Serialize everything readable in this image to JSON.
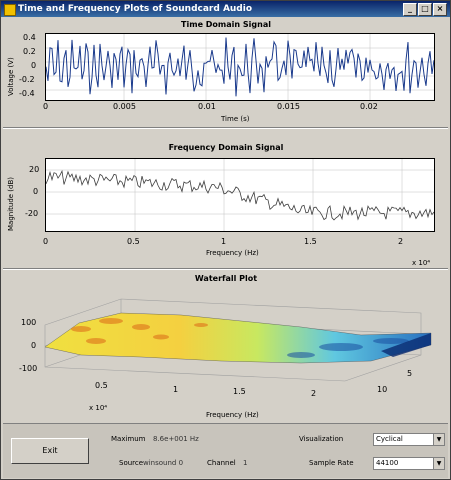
{
  "window": {
    "title": "Time and Frequency Plots of Soundcard Audio",
    "buttons": [
      "_",
      "□",
      "×"
    ]
  },
  "time_panel": {
    "title": "Time Domain Signal",
    "ylabel": "Voltage (V)",
    "xlabel": "Time (s)",
    "yticks": [
      "0.4",
      "0.2",
      "0",
      "-0.2",
      "-0.4"
    ],
    "xticks": [
      "0",
      "0.005",
      "0.01",
      "0.015",
      "0.02"
    ]
  },
  "freq_panel": {
    "title": "Frequency Domain Signal",
    "ylabel": "Magnitude (dB)",
    "xlabel": "Frequency (Hz)",
    "yticks": [
      "20",
      "0",
      "-20"
    ],
    "xticks": [
      "0",
      "0.5",
      "1",
      "1.5",
      "2"
    ],
    "exponent": "x 10⁴"
  },
  "waterfall_panel": {
    "title": "Waterfall Plot",
    "zticks": [
      "100",
      "0",
      "-100"
    ],
    "xticks": [
      "0.5",
      "1",
      "1.5",
      "2"
    ],
    "yticks": [
      "5",
      "10"
    ],
    "xlabel": "Frequency (Hz)",
    "exponent": "x 10⁴"
  },
  "controls": {
    "exit_label": "Exit",
    "maximum_label": "Maximum",
    "maximum_value": "8.6e+001 Hz",
    "source_label": "Source",
    "source_value": "winsound 0",
    "channel_label": "Channel",
    "channel_value": "1",
    "visualization_label": "Visualization",
    "visualization_value": "Cyclical",
    "sample_rate_label": "Sample Rate",
    "sample_rate_value": "44100"
  },
  "colors": {
    "trace": "#1a3a8c",
    "freq_trace": "#3c3c3c",
    "title_bar": "#0a246a"
  }
}
